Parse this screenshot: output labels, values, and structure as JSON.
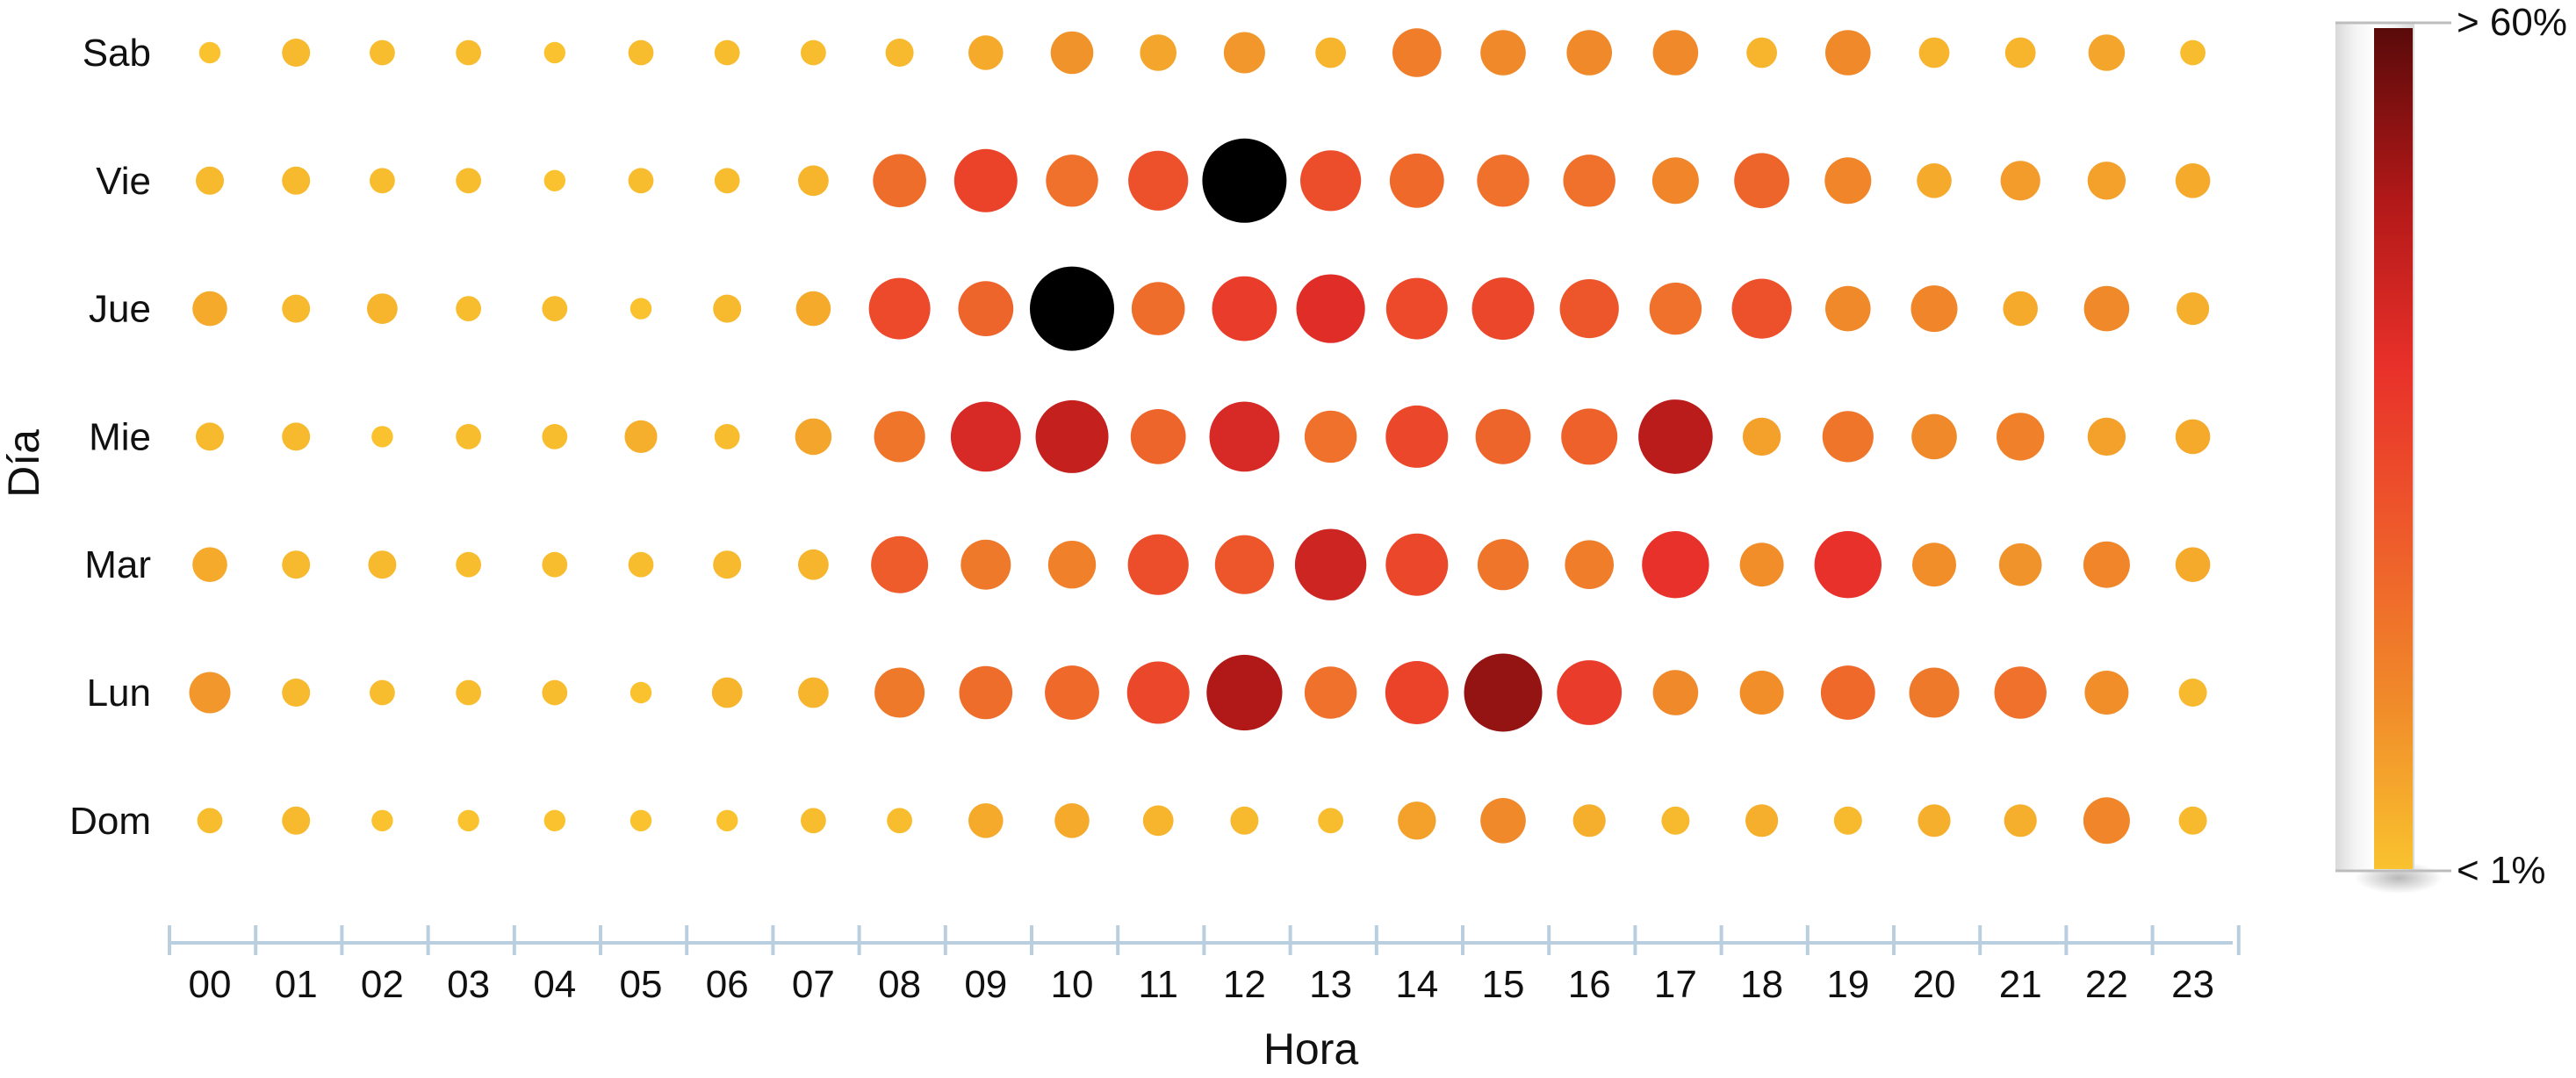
{
  "chart_data": {
    "type": "scatter",
    "subtype": "bubble-matrix",
    "xlabel": "Hora",
    "ylabel": "Día",
    "x_categories": [
      "00",
      "01",
      "02",
      "03",
      "04",
      "05",
      "06",
      "07",
      "08",
      "09",
      "10",
      "11",
      "12",
      "13",
      "14",
      "15",
      "16",
      "17",
      "18",
      "19",
      "20",
      "21",
      "22",
      "23"
    ],
    "y_categories": [
      "Sab",
      "Vie",
      "Jue",
      "Mie",
      "Mar",
      "Lun",
      "Dom"
    ],
    "value_unit": "%",
    "color_scale": {
      "min_label": "< 1%",
      "max_label": "> 60%",
      "min_value": 1,
      "max_value": 60,
      "colors": [
        "#f9c22e",
        "#f08a2a",
        "#ee5a2b",
        "#e8302a",
        "#b01818",
        "#5a0a0a"
      ],
      "overflow_color": "#000000"
    },
    "series": [
      {
        "day": "Sab",
        "values": [
          1,
          3,
          2,
          2,
          1,
          2,
          2,
          2,
          3,
          6,
          11,
          7,
          10,
          4,
          16,
          13,
          13,
          13,
          4,
          13,
          4,
          4,
          7,
          2
        ]
      },
      {
        "day": "Vie",
        "values": [
          3,
          3,
          2,
          2,
          1,
          2,
          2,
          4,
          20,
          31,
          19,
          27,
          62,
          28,
          21,
          19,
          19,
          14,
          22,
          14,
          6,
          9,
          8,
          6
        ]
      },
      {
        "day": "Jue",
        "values": [
          6,
          3,
          4,
          2,
          2,
          1,
          3,
          6,
          29,
          22,
          62,
          20,
          33,
          38,
          29,
          30,
          26,
          19,
          27,
          13,
          14,
          6,
          13,
          5
        ]
      },
      {
        "day": "Mie",
        "values": [
          3,
          3,
          1,
          2,
          2,
          5,
          2,
          7,
          18,
          40,
          44,
          22,
          40,
          19,
          30,
          22,
          23,
          46,
          8,
          18,
          13,
          15,
          8,
          6
        ]
      },
      {
        "day": "Mar",
        "values": [
          6,
          3,
          3,
          2,
          2,
          2,
          3,
          4,
          24,
          17,
          15,
          28,
          26,
          42,
          30,
          18,
          16,
          36,
          12,
          36,
          12,
          11,
          14,
          6
        ]
      },
      {
        "day": "Lun",
        "values": [
          10,
          3,
          2,
          2,
          2,
          1,
          4,
          4,
          17,
          20,
          21,
          30,
          48,
          19,
          31,
          52,
          33,
          13,
          12,
          21,
          17,
          19,
          12,
          3
        ]
      },
      {
        "day": "Dom",
        "values": [
          2,
          3,
          1,
          1,
          1,
          1,
          1,
          2,
          2,
          6,
          6,
          4,
          3,
          2,
          8,
          13,
          5,
          3,
          5,
          3,
          5,
          5,
          14,
          3
        ]
      }
    ]
  }
}
